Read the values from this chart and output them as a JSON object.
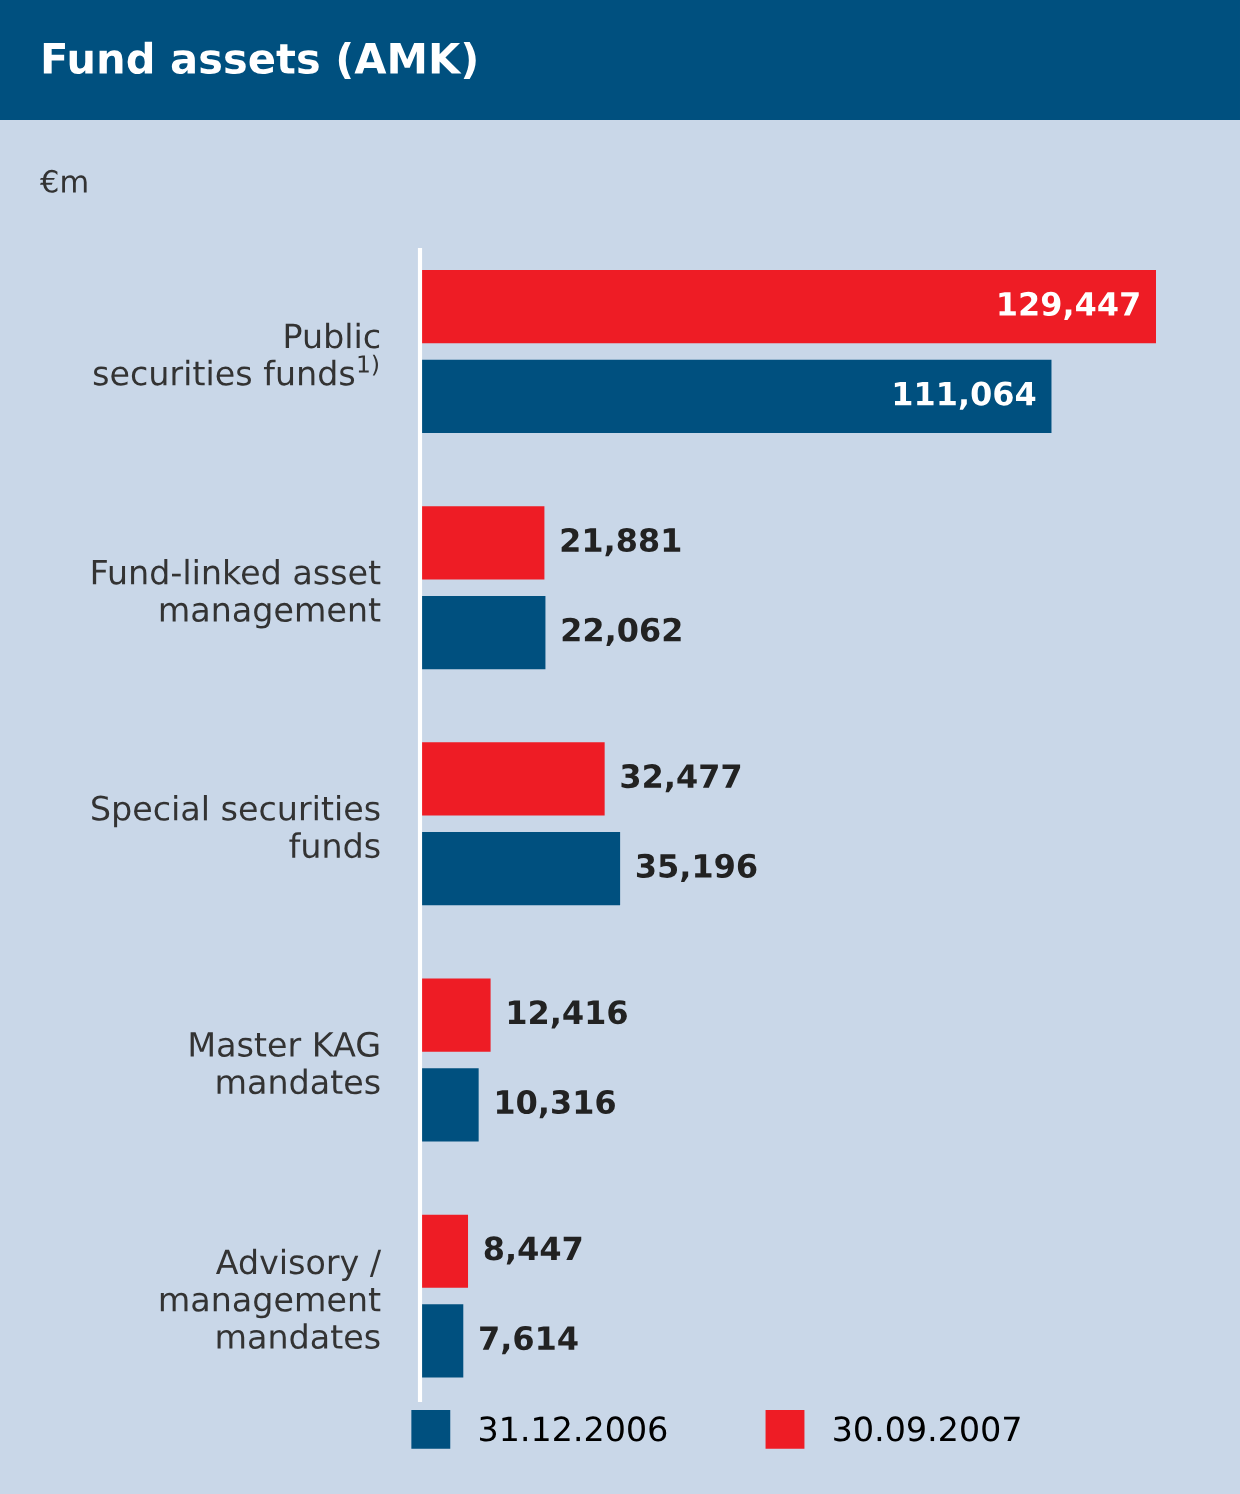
{
  "chart_data": {
    "type": "bar",
    "orientation": "horizontal",
    "title": "Fund assets (AMK)",
    "annotations": [
      "€m"
    ],
    "categories": [
      "Public\nsecurities funds$^{1)}$",
      "Fund-linked asset\nmanagement",
      "Special securities\nfunds",
      "Master KAG\nmandates",
      "Advisory /\nmanagement\nmandates"
    ],
    "series": [
      {
        "name": "31.12.2006",
        "color": "#00507f",
        "values": [
          111064,
          22062,
          35196,
          10316,
          7614
        ],
        "value_labels": [
          "111,064",
          "22,062",
          "35,196",
          "10,316",
          "7,614"
        ]
      },
      {
        "name": "30.09.2007",
        "color": "#ee1c25",
        "values": [
          129447,
          21881,
          32477,
          12416,
          8447
        ],
        "value_labels": [
          "129,447",
          "21,881",
          "32,477",
          "12,416",
          "8,447"
        ]
      }
    ],
    "legend": "bottom",
    "grid": false
  }
}
